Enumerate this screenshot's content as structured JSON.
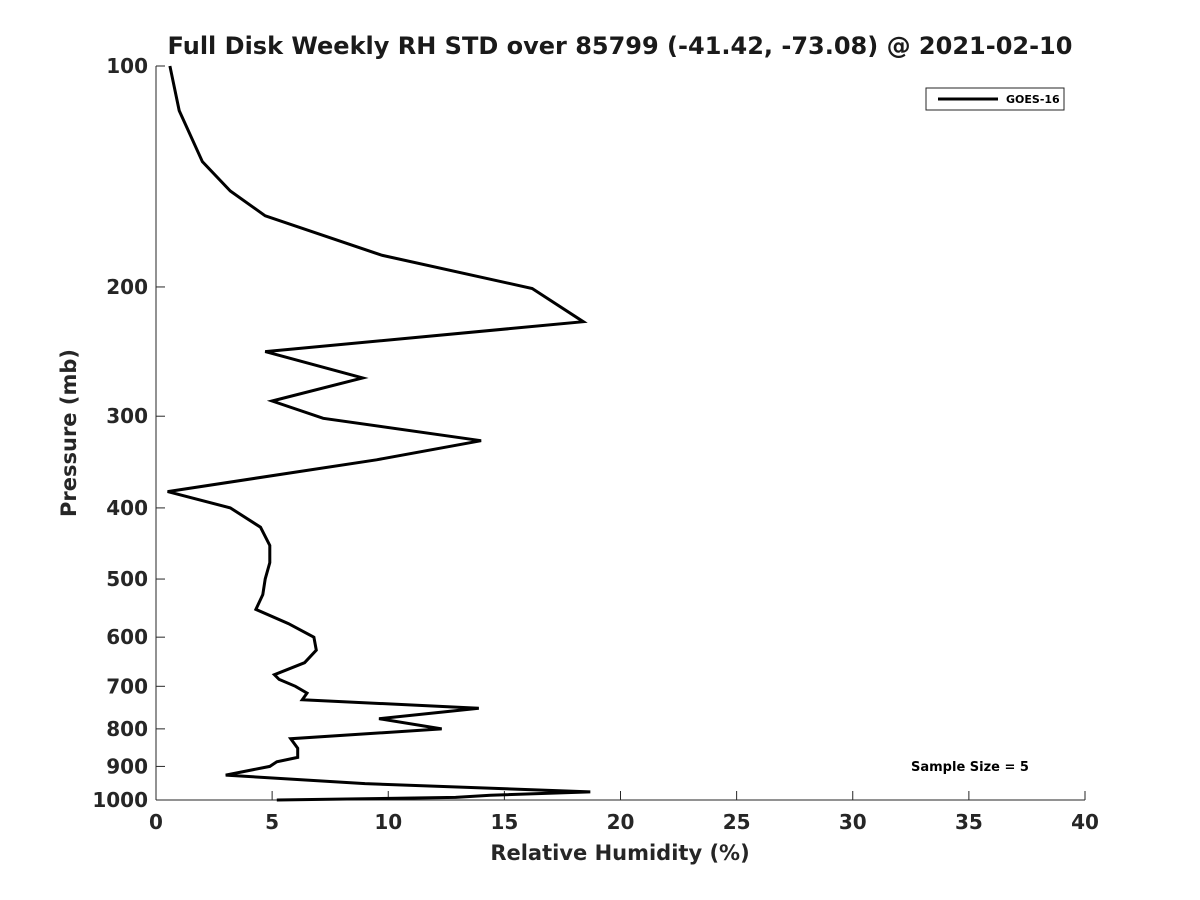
{
  "chart_data": {
    "type": "line",
    "title": "Full Disk Weekly RH STD over 85799 (-41.42, -73.08) @ 2021-02-10",
    "xlabel": "Relative Humidity (%)",
    "ylabel": "Pressure (mb)",
    "xlim": [
      0,
      40
    ],
    "ylim": [
      100,
      1000
    ],
    "yscale": "log",
    "grid": false,
    "x_ticks": [
      0,
      5,
      10,
      15,
      20,
      25,
      30,
      35,
      40
    ],
    "y_ticks": [
      100,
      200,
      300,
      400,
      500,
      600,
      700,
      800,
      900,
      1000
    ],
    "legend": {
      "position": "top-right",
      "entries": [
        "GOES-16"
      ]
    },
    "annotation": "Sample Size = 5",
    "series": [
      {
        "name": "GOES-16",
        "color": "#000000",
        "x": [
          0.6,
          1.0,
          2.0,
          3.2,
          4.7,
          9.7,
          16.2,
          18.4,
          4.7,
          8.9,
          5.0,
          7.2,
          14.0,
          9.5,
          0.5,
          3.2,
          4.5,
          4.9,
          4.9,
          4.7,
          4.6,
          4.3,
          5.7,
          6.8,
          6.9,
          6.4,
          5.1,
          5.3,
          6.0,
          6.5,
          6.3,
          13.9,
          9.6,
          12.3,
          5.8,
          6.1,
          6.1,
          5.2,
          4.9,
          3.0,
          9.0,
          18.7,
          14.4,
          12.9,
          5.2
        ],
        "y": [
          100,
          115,
          135,
          148,
          160,
          181,
          201,
          223,
          245,
          266,
          286,
          302,
          324,
          344,
          380,
          400,
          425,
          450,
          475,
          500,
          525,
          550,
          575,
          600,
          625,
          650,
          675,
          685,
          700,
          715,
          730,
          750,
          775,
          800,
          825,
          850,
          875,
          887,
          900,
          925,
          950,
          975,
          985,
          992,
          1000
        ]
      }
    ]
  }
}
